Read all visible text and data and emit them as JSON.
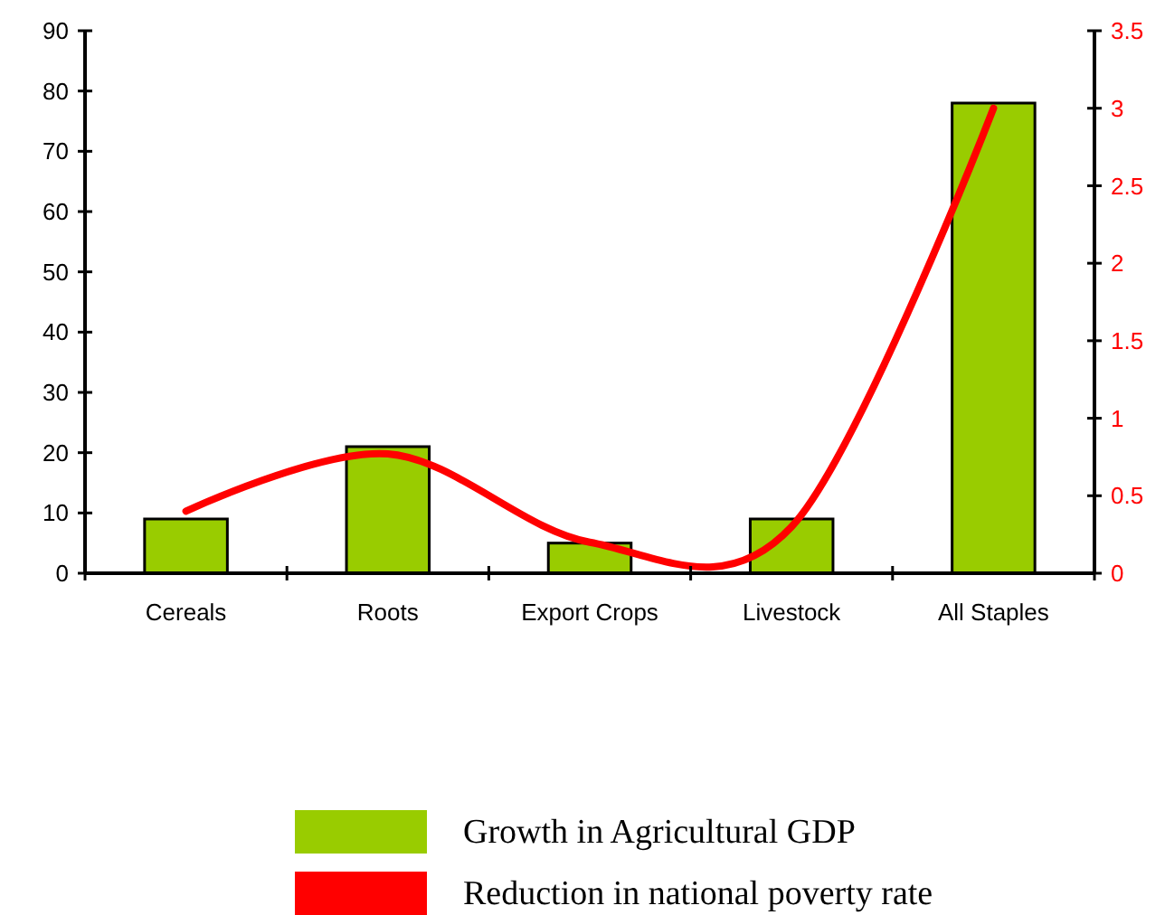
{
  "chart_data": {
    "type": "bar",
    "categories": [
      "Cereals",
      "Roots",
      "Export Crops",
      "Livestock",
      "All Staples"
    ],
    "series": [
      {
        "name": "Growth in Agricultural GDP",
        "color": "#99cc00",
        "values": [
          9,
          21,
          5,
          9,
          78
        ]
      },
      {
        "name": "Reduction in national poverty rate",
        "type": "line",
        "axis": "y2",
        "color": "#ff0000",
        "values": [
          0.4,
          0.77,
          0.2,
          0.3,
          3.0
        ]
      }
    ],
    "ylim": [
      0,
      90
    ],
    "yticks": [
      0,
      10,
      20,
      30,
      40,
      50,
      60,
      70,
      80,
      90
    ],
    "y2lim": [
      0,
      3.5
    ],
    "y2ticks": [
      0,
      0.5,
      1,
      1.5,
      2,
      2.5,
      3,
      3.5
    ],
    "legend": "bottom"
  }
}
